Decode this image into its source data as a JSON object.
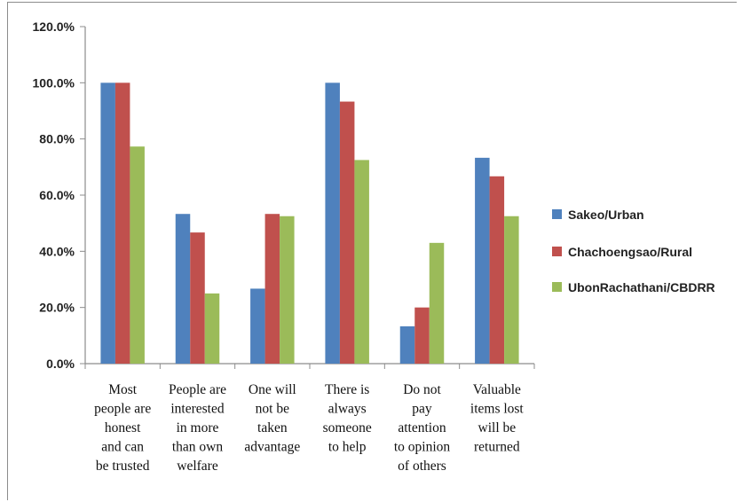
{
  "chart_data": {
    "type": "bar",
    "categories": [
      [
        "Most",
        "people are",
        "honest",
        "and can",
        "be trusted"
      ],
      [
        "People are",
        "interested",
        "in more",
        "than own",
        "welfare"
      ],
      [
        "One will",
        "not be",
        "taken",
        "advantage"
      ],
      [
        "There is",
        "always",
        "someone",
        "to help"
      ],
      [
        "Do not",
        "pay",
        "attention",
        "to opinion",
        "of others"
      ],
      [
        "Valuable",
        "items lost",
        "will be",
        "returned"
      ]
    ],
    "series": [
      {
        "name": "Sakeo/Urban",
        "color": "#4f81bd",
        "values": [
          100.0,
          53.3,
          26.7,
          100.0,
          13.3,
          73.3
        ]
      },
      {
        "name": "Chachoengsao/Rural",
        "color": "#c0504d",
        "values": [
          100.0,
          46.7,
          53.3,
          93.3,
          20.0,
          66.7
        ]
      },
      {
        "name": "UbonRachathani/CBDRR",
        "color": "#9bbb59",
        "values": [
          77.3,
          25.0,
          52.5,
          72.5,
          43.0,
          52.5
        ]
      }
    ],
    "ylim": [
      0,
      120
    ],
    "yticks": [
      "0.0%",
      "20.0%",
      "40.0%",
      "60.0%",
      "80.0%",
      "100.0%",
      "120.0%"
    ],
    "grid": false,
    "legend": "right",
    "title": "",
    "xlabel": "",
    "ylabel": ""
  }
}
